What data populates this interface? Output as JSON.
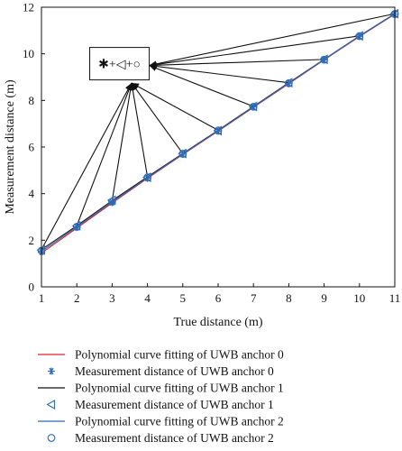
{
  "chart_data": {
    "type": "line",
    "xlabel": "True distance (m)",
    "ylabel": "Measurement distance (m)",
    "xlim": [
      1,
      11
    ],
    "ylim": [
      0,
      12
    ],
    "xticks": [
      1,
      2,
      3,
      4,
      5,
      6,
      7,
      8,
      9,
      10,
      11
    ],
    "yticks": [
      0,
      2,
      4,
      6,
      8,
      10,
      12
    ],
    "x": [
      1,
      2,
      3,
      4,
      5,
      6,
      7,
      8,
      9,
      10,
      11
    ],
    "series": [
      {
        "name": "Polynomial curve fitting of UWB anchor 0",
        "kind": "line",
        "color": "#e0202a",
        "values": [
          1.45,
          2.52,
          3.6,
          4.66,
          5.68,
          6.68,
          7.7,
          8.72,
          9.74,
          10.74,
          11.7
        ]
      },
      {
        "name": "Measurement distance of UWB anchor 0",
        "kind": "marker",
        "marker": "asterisk",
        "color": "#2e6bb5",
        "values": [
          1.5,
          2.55,
          3.62,
          4.66,
          5.69,
          6.68,
          7.72,
          8.72,
          9.74,
          10.75,
          11.7
        ]
      },
      {
        "name": "Polynomial curve fitting of UWB anchor 1",
        "kind": "line",
        "color": "#111111",
        "values": [
          1.6,
          2.62,
          3.7,
          4.72,
          5.72,
          6.72,
          7.74,
          8.76,
          9.76,
          10.77,
          11.72
        ]
      },
      {
        "name": "Measurement distance of UWB anchor 1",
        "kind": "marker",
        "marker": "triangle-left",
        "color": "#2e6bb5",
        "values": [
          1.58,
          2.62,
          3.72,
          4.7,
          5.72,
          6.7,
          7.74,
          8.76,
          9.76,
          10.77,
          11.72
        ]
      },
      {
        "name": "Polynomial curve fitting of UWB anchor 2",
        "kind": "line",
        "color": "#2e6bb5",
        "values": [
          1.52,
          2.57,
          3.64,
          4.68,
          5.7,
          6.7,
          7.72,
          8.74,
          9.75,
          10.76,
          11.71
        ]
      },
      {
        "name": "Measurement distance of UWB anchor 2",
        "kind": "marker",
        "marker": "circle",
        "color": "#2e6bb5",
        "values": [
          1.55,
          2.58,
          3.66,
          4.7,
          5.71,
          6.71,
          7.73,
          8.74,
          9.75,
          10.76,
          11.71
        ]
      }
    ],
    "annotation": {
      "symbols": "✱+◁+○",
      "left_hub": [
        3.55,
        8.75
      ],
      "right_hub": [
        4.05,
        9.5
      ],
      "left_targets_x": [
        1,
        2,
        3,
        4,
        5,
        6
      ],
      "right_targets_x": [
        7,
        8,
        9,
        10,
        11
      ]
    },
    "legend_position": "bottom",
    "grid": false
  }
}
